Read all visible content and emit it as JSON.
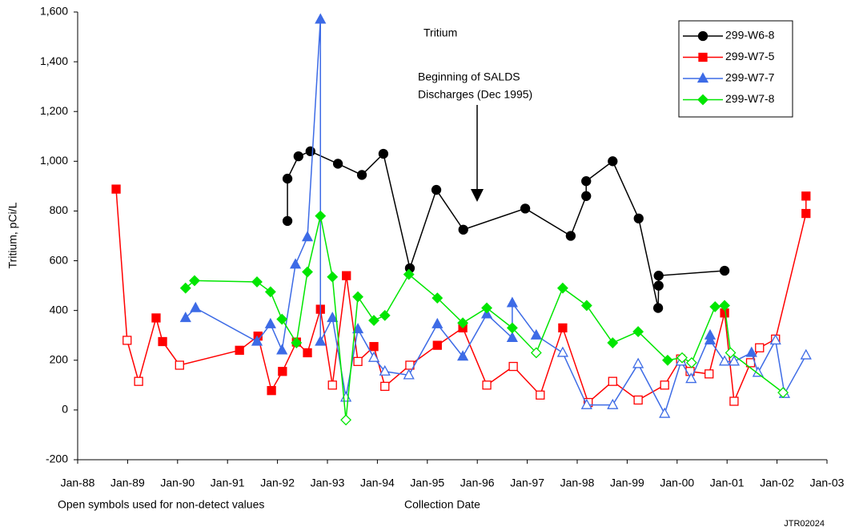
{
  "chart_data": {
    "type": "line",
    "title": "Tritium",
    "x_label": "Collection Date",
    "y_label": "Tritium, pCi/L",
    "annotation": [
      "Beginning of SALDS",
      "Discharges (Dec 1995)"
    ],
    "note": "Open symbols used for non-detect values",
    "footer": "JTR02024",
    "xlim": [
      1988,
      2003
    ],
    "xticks": [
      {
        "value": 1988,
        "label": "Jan-88"
      },
      {
        "value": 1989,
        "label": "Jan-89"
      },
      {
        "value": 1990,
        "label": "Jan-90"
      },
      {
        "value": 1991,
        "label": "Jan-91"
      },
      {
        "value": 1992,
        "label": "Jan-92"
      },
      {
        "value": 1993,
        "label": "Jan-93"
      },
      {
        "value": 1994,
        "label": "Jan-94"
      },
      {
        "value": 1995,
        "label": "Jan-95"
      },
      {
        "value": 1996,
        "label": "Jan-96"
      },
      {
        "value": 1997,
        "label": "Jan-97"
      },
      {
        "value": 1998,
        "label": "Jan-98"
      },
      {
        "value": 1999,
        "label": "Jan-99"
      },
      {
        "value": 2000,
        "label": "Jan-00"
      },
      {
        "value": 2001,
        "label": "Jan-01"
      },
      {
        "value": 2002,
        "label": "Jan-02"
      },
      {
        "value": 2003,
        "label": "Jan-03"
      }
    ],
    "ylim": [
      -200,
      1600
    ],
    "yticks": [
      -200,
      0,
      200,
      400,
      600,
      800,
      {
        "value": 1000,
        "label": "1,000"
      },
      {
        "value": 1200,
        "label": "1,200"
      },
      {
        "value": 1400,
        "label": "1,400"
      },
      {
        "value": 1600,
        "label": "1,600"
      }
    ],
    "grid": false,
    "legend": "top-right",
    "series": [
      {
        "name": "299-W6-8",
        "color": "#000000",
        "marker": "circle",
        "x": [
          1992.2,
          1992.2,
          1992.42,
          1992.66,
          1993.21,
          1993.69,
          1994.12,
          1994.65,
          1995.18,
          1995.72,
          1996.96,
          1997.87,
          1998.18,
          1998.18,
          1998.71,
          1999.23,
          1999.62,
          1999.63,
          1999.63,
          2000.95
        ],
        "values": [
          760,
          930,
          1020,
          1040,
          990,
          945,
          1030,
          570,
          885,
          725,
          810,
          700,
          860,
          920,
          1000,
          770,
          410,
          500,
          540,
          560
        ],
        "open": [
          false,
          false,
          false,
          false,
          false,
          false,
          false,
          false,
          false,
          false,
          false,
          false,
          false,
          false,
          false,
          false,
          false,
          false,
          false,
          false
        ]
      },
      {
        "name": "299-W7-5",
        "color": "#ff0000",
        "marker": "square",
        "x": [
          1988.77,
          1988.99,
          1989.22,
          1989.57,
          1989.7,
          1990.04,
          1991.24,
          1991.61,
          1991.88,
          1992.1,
          1992.38,
          1992.6,
          1992.86,
          1993.1,
          1993.38,
          1993.61,
          1993.93,
          1994.15,
          1994.65,
          1995.2,
          1995.71,
          1996.19,
          1996.72,
          1997.26,
          1997.71,
          1998.22,
          1998.71,
          1999.22,
          1999.75,
          2000.07,
          2000.26,
          2000.64,
          2000.95,
          2001.14,
          2001.47,
          2001.65,
          2001.97,
          2002.58,
          2002.58
        ],
        "values": [
          888,
          280,
          115,
          370,
          275,
          180,
          240,
          297,
          78,
          155,
          273,
          230,
          405,
          100,
          540,
          195,
          255,
          95,
          180,
          260,
          330,
          100,
          175,
          60,
          330,
          30,
          115,
          40,
          100,
          205,
          155,
          145,
          390,
          35,
          190,
          250,
          285,
          790,
          860
        ],
        "open": [
          false,
          true,
          true,
          false,
          false,
          true,
          false,
          false,
          false,
          false,
          false,
          false,
          false,
          true,
          false,
          true,
          false,
          true,
          true,
          false,
          false,
          true,
          true,
          true,
          false,
          true,
          true,
          true,
          true,
          true,
          true,
          true,
          false,
          true,
          true,
          true,
          true,
          false,
          false
        ]
      },
      {
        "name": "299-W7-7",
        "color": "#3d6be6",
        "marker": "triangle",
        "x": [
          1990.16,
          1990.36,
          1991.59,
          1991.86,
          1992.09,
          1992.36,
          1992.6,
          1992.86,
          1992.86,
          1993.1,
          1993.37,
          1993.61,
          1993.93,
          1994.15,
          1994.63,
          1995.2,
          1995.71,
          1996.19,
          1996.7,
          1996.7,
          1997.18,
          1997.71,
          1998.19,
          1998.71,
          1999.22,
          1999.75,
          2000.08,
          2000.28,
          2000.66,
          2000.66,
          2000.95,
          2001.14,
          2001.49,
          2001.62,
          2001.97,
          2002.15,
          2002.58
        ],
        "values": [
          370,
          410,
          275,
          345,
          240,
          585,
          695,
          1570,
          275,
          370,
          50,
          325,
          210,
          155,
          140,
          345,
          215,
          385,
          290,
          430,
          300,
          230,
          20,
          20,
          185,
          -15,
          195,
          125,
          300,
          280,
          195,
          195,
          230,
          150,
          280,
          65,
          220
        ],
        "open": [
          false,
          false,
          false,
          false,
          false,
          false,
          false,
          false,
          false,
          false,
          true,
          false,
          true,
          true,
          true,
          false,
          false,
          false,
          false,
          false,
          false,
          true,
          true,
          true,
          true,
          true,
          true,
          true,
          false,
          false,
          true,
          true,
          false,
          true,
          true,
          true,
          true
        ]
      },
      {
        "name": "299-W7-8",
        "color": "#00e600",
        "marker": "diamond",
        "x": [
          1990.16,
          1990.34,
          1991.59,
          1991.86,
          1992.09,
          1992.38,
          1992.6,
          1992.86,
          1993.1,
          1993.37,
          1993.61,
          1993.93,
          1994.15,
          1994.63,
          1995.2,
          1995.71,
          1996.19,
          1996.7,
          1997.18,
          1997.71,
          1998.19,
          1998.71,
          1999.22,
          1999.81,
          2000.1,
          2000.29,
          2000.76,
          2000.95,
          2001.07,
          2002.12
        ],
        "values": [
          490,
          520,
          515,
          475,
          365,
          270,
          555,
          780,
          535,
          -40,
          455,
          360,
          380,
          545,
          450,
          350,
          410,
          330,
          230,
          490,
          420,
          270,
          315,
          200,
          210,
          190,
          415,
          420,
          230,
          70
        ],
        "open": [
          false,
          false,
          false,
          false,
          false,
          false,
          false,
          false,
          false,
          true,
          false,
          false,
          false,
          false,
          false,
          false,
          false,
          false,
          true,
          false,
          false,
          false,
          false,
          false,
          true,
          true,
          false,
          false,
          true,
          true
        ]
      }
    ]
  }
}
